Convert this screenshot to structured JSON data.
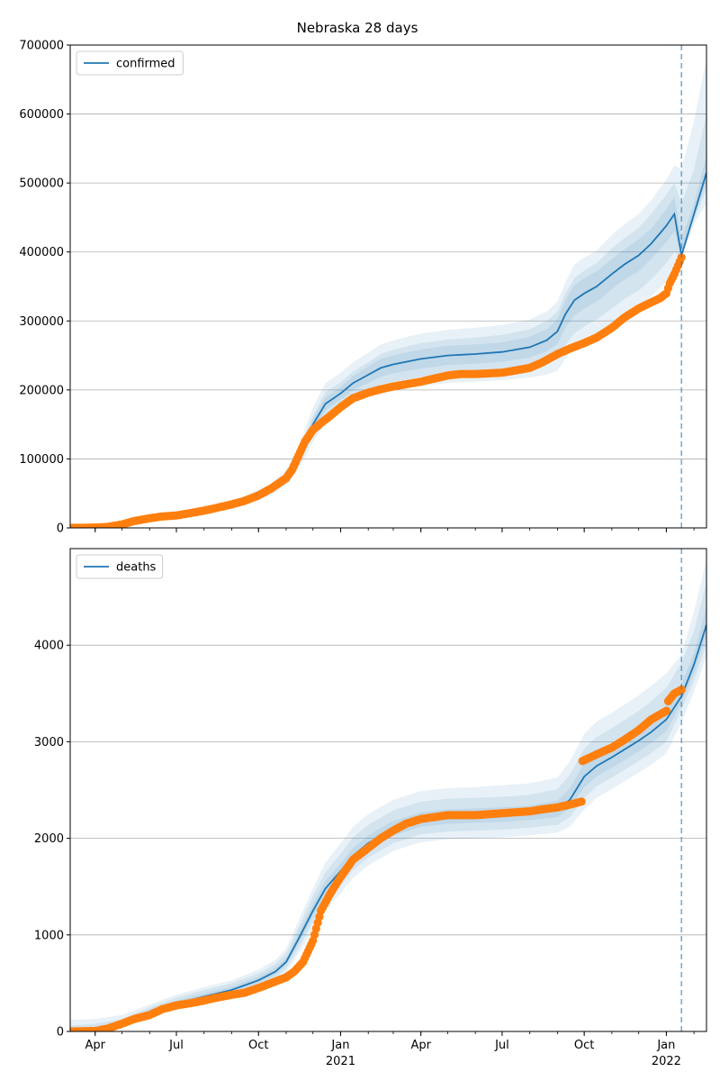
{
  "chart_data": {
    "type": "line",
    "title": "Nebraska 28 days",
    "x_ticks": [
      {
        "date": "2020-04-01",
        "label": "Apr",
        "year": ""
      },
      {
        "date": "2020-07-01",
        "label": "Jul",
        "year": ""
      },
      {
        "date": "2020-10-01",
        "label": "Oct",
        "year": ""
      },
      {
        "date": "2021-01-01",
        "label": "Jan",
        "year": "2021"
      },
      {
        "date": "2021-04-01",
        "label": "Apr",
        "year": ""
      },
      {
        "date": "2021-07-01",
        "label": "Jul",
        "year": ""
      },
      {
        "date": "2021-10-01",
        "label": "Oct",
        "year": ""
      },
      {
        "date": "2022-01-01",
        "label": "Jan",
        "year": "2022"
      }
    ],
    "xlim": [
      "2020-03-04",
      "2022-02-15"
    ],
    "forecast_start": "2022-01-18",
    "grid": true,
    "legend_placement": "top-left",
    "band_color": "#1f77b4",
    "model_color": "#1f77b4",
    "observed_color": "#ff7f0e",
    "panels": [
      {
        "series_name": "confirmed",
        "ylim": [
          0,
          700000
        ],
        "yticks": [
          0,
          100000,
          200000,
          300000,
          400000,
          500000,
          600000,
          700000
        ],
        "model": {
          "x": [
            "2020-03-04",
            "2020-04-15",
            "2020-05-15",
            "2020-06-15",
            "2020-07-15",
            "2020-08-15",
            "2020-09-15",
            "2020-10-15",
            "2020-11-01",
            "2020-11-15",
            "2020-12-01",
            "2020-12-15",
            "2021-01-01",
            "2021-01-15",
            "2021-02-01",
            "2021-02-15",
            "2021-03-01",
            "2021-04-01",
            "2021-05-01",
            "2021-06-01",
            "2021-07-01",
            "2021-08-01",
            "2021-08-20",
            "2021-09-01",
            "2021-09-10",
            "2021-09-20",
            "2021-10-01",
            "2021-10-15",
            "2021-11-01",
            "2021-11-15",
            "2021-12-01",
            "2021-12-15",
            "2022-01-01",
            "2022-01-10",
            "2022-01-18",
            "2022-02-01",
            "2022-02-15"
          ],
          "y": [
            0,
            1500,
            10000,
            17000,
            23000,
            30000,
            40000,
            55000,
            72000,
            100000,
            150000,
            180000,
            195000,
            210000,
            222000,
            232000,
            237000,
            245000,
            250000,
            252000,
            255000,
            262000,
            272000,
            285000,
            310000,
            330000,
            340000,
            350000,
            368000,
            382000,
            395000,
            412000,
            438000,
            455000,
            395000,
            455000,
            515000
          ],
          "bands": [
            {
              "lower": [
                0,
                1000,
                8000,
                14000,
                19000,
                25000,
                34000,
                47000,
                62000,
                85000,
                125000,
                152000,
                168000,
                180000,
                190000,
                196000,
                200000,
                206000,
                210000,
                212000,
                214000,
                218000,
                222000,
                228000,
                245000,
                262000,
                272000,
                282000,
                296000,
                310000,
                322000,
                336000,
                356000,
                370000,
                390000,
                440000,
                470000
              ],
              "upper": [
                0,
                2000,
                12000,
                20000,
                27000,
                35000,
                46000,
                64000,
                84000,
                118000,
                175000,
                210000,
                225000,
                240000,
                254000,
                266000,
                272000,
                282000,
                287000,
                290000,
                294000,
                302000,
                314000,
                328000,
                356000,
                382000,
                392000,
                402000,
                425000,
                440000,
                455000,
                475000,
                505000,
                525000,
                520000,
                590000,
                680000
              ]
            },
            {
              "lower": [
                0,
                1100,
                8500,
                15000,
                20000,
                26500,
                36000,
                50000,
                66000,
                90000,
                135000,
                162000,
                178000,
                190000,
                200000,
                208000,
                212000,
                219000,
                223000,
                226000,
                229000,
                233000,
                238000,
                245000,
                265000,
                282000,
                292000,
                302000,
                318000,
                332000,
                344000,
                360000,
                384000,
                400000,
                392000,
                447000,
                490000
              ],
              "upper": [
                0,
                1900,
                11500,
                19000,
                26000,
                33500,
                44000,
                61000,
                79000,
                111000,
                163000,
                197000,
                211000,
                227000,
                240000,
                252000,
                258000,
                268000,
                273000,
                276000,
                280000,
                288000,
                300000,
                313000,
                340000,
                362000,
                373000,
                384000,
                405000,
                420000,
                435000,
                455000,
                483000,
                500000,
                470000,
                520000,
                600000
              ]
            },
            {
              "lower": [
                0,
                1300,
                9200,
                16000,
                21500,
                28000,
                38000,
                52500,
                69000,
                95000,
                142000,
                171000,
                186000,
                200000,
                210000,
                219000,
                224000,
                231000,
                236000,
                238000,
                241000,
                247000,
                256000,
                267000,
                290000,
                308000,
                318000,
                328000,
                346000,
                360000,
                372000,
                390000,
                414000,
                430000,
                393000,
                451000,
                503000
              ],
              "upper": [
                0,
                1700,
                10800,
                18000,
                24500,
                32000,
                42000,
                57500,
                75000,
                105000,
                158000,
                189000,
                204000,
                220000,
                234000,
                245000,
                250000,
                259000,
                264000,
                266000,
                269000,
                277000,
                288000,
                303000,
                330000,
                352000,
                362000,
                372000,
                390000,
                404000,
                418000,
                434000,
                462000,
                480000,
                420000,
                470000,
                540000
              ]
            }
          ]
        },
        "observed": {
          "x": [
            "2020-03-04",
            "2020-04-01",
            "2020-04-15",
            "2020-05-01",
            "2020-05-15",
            "2020-06-01",
            "2020-06-15",
            "2020-07-01",
            "2020-07-15",
            "2020-08-01",
            "2020-08-15",
            "2020-09-01",
            "2020-09-15",
            "2020-10-01",
            "2020-10-15",
            "2020-11-01",
            "2020-11-08",
            "2020-11-15",
            "2020-11-22",
            "2020-12-01",
            "2020-12-10",
            "2020-12-20",
            "2021-01-01",
            "2021-01-15",
            "2021-02-01",
            "2021-02-15",
            "2021-03-01",
            "2021-04-01",
            "2021-05-01",
            "2021-05-15",
            "2021-06-01",
            "2021-07-01",
            "2021-07-15",
            "2021-08-01",
            "2021-08-15",
            "2021-09-01",
            "2021-09-15",
            "2021-10-01",
            "2021-10-15",
            "2021-11-01",
            "2021-11-15",
            "2021-12-01",
            "2021-12-15",
            "2021-12-25",
            "2022-01-01",
            "2022-01-05",
            "2022-01-10",
            "2022-01-14",
            "2022-01-18"
          ],
          "y": [
            0,
            500,
            1500,
            5000,
            10000,
            14000,
            16500,
            18000,
            21000,
            25000,
            29000,
            34000,
            39000,
            47000,
            57000,
            72000,
            85000,
            105000,
            125000,
            142000,
            152000,
            162000,
            175000,
            188000,
            196000,
            201000,
            205000,
            212000,
            221000,
            223000,
            223000,
            225000,
            228000,
            232000,
            240000,
            252000,
            260000,
            268000,
            276000,
            290000,
            305000,
            318000,
            327000,
            333000,
            340000,
            355000,
            368000,
            380000,
            392000
          ]
        }
      },
      {
        "series_name": "deaths",
        "ylim": [
          0,
          5000
        ],
        "yticks": [
          0,
          1000,
          2000,
          3000,
          4000
        ],
        "model": {
          "x": [
            "2020-03-04",
            "2020-04-01",
            "2020-05-01",
            "2020-06-01",
            "2020-07-01",
            "2020-08-01",
            "2020-09-01",
            "2020-10-01",
            "2020-10-20",
            "2020-11-01",
            "2020-11-15",
            "2020-12-01",
            "2020-12-15",
            "2021-01-01",
            "2021-01-15",
            "2021-02-01",
            "2021-03-01",
            "2021-04-01",
            "2021-05-01",
            "2021-06-01",
            "2021-07-01",
            "2021-08-01",
            "2021-09-01",
            "2021-09-15",
            "2021-10-01",
            "2021-10-15",
            "2021-11-01",
            "2021-12-01",
            "2021-12-15",
            "2022-01-01",
            "2022-01-18",
            "2022-02-01",
            "2022-02-15"
          ],
          "y": [
            0,
            10,
            80,
            200,
            290,
            360,
            430,
            530,
            620,
            720,
            960,
            1250,
            1480,
            1660,
            1820,
            1950,
            2100,
            2190,
            2220,
            2230,
            2240,
            2260,
            2300,
            2400,
            2640,
            2750,
            2840,
            3010,
            3100,
            3230,
            3470,
            3800,
            4210
          ],
          "bands": [
            {
              "lower": [
                0,
                0,
                40,
                150,
                230,
                290,
                350,
                440,
                520,
                610,
                810,
                1060,
                1260,
                1430,
                1590,
                1720,
                1870,
                1960,
                1990,
                2000,
                2010,
                2030,
                2060,
                2120,
                2300,
                2420,
                2510,
                2680,
                2760,
                2880,
                3200,
                3520,
                3880
              ],
              "upper": [
                120,
                130,
                170,
                280,
                380,
                460,
                530,
                640,
                740,
                860,
                1150,
                1480,
                1750,
                1950,
                2120,
                2250,
                2400,
                2490,
                2520,
                2530,
                2550,
                2570,
                2630,
                2800,
                3080,
                3210,
                3300,
                3480,
                3580,
                3710,
                3900,
                4350,
                4880
              ]
            },
            {
              "lower": [
                0,
                0,
                55,
                165,
                250,
                310,
                380,
                470,
                550,
                650,
                860,
                1130,
                1340,
                1510,
                1670,
                1800,
                1950,
                2040,
                2070,
                2080,
                2090,
                2110,
                2140,
                2220,
                2420,
                2540,
                2630,
                2800,
                2880,
                3000,
                3330,
                3630,
                4000
              ],
              "upper": [
                60,
                80,
                130,
                250,
                350,
                430,
                500,
                600,
                700,
                810,
                1080,
                1400,
                1650,
                1840,
                2010,
                2140,
                2290,
                2380,
                2410,
                2420,
                2430,
                2450,
                2510,
                2660,
                2930,
                3050,
                3140,
                3320,
                3420,
                3560,
                3820,
                4150,
                4650
              ]
            },
            {
              "lower": [
                0,
                3,
                65,
                180,
                265,
                330,
                405,
                500,
                585,
                690,
                910,
                1190,
                1410,
                1590,
                1750,
                1880,
                2030,
                2120,
                2150,
                2160,
                2170,
                2190,
                2220,
                2310,
                2530,
                2640,
                2730,
                2900,
                2990,
                3110,
                3400,
                3710,
                4100
              ],
              "upper": [
                20,
                40,
                100,
                225,
                320,
                395,
                465,
                565,
                660,
                760,
                1020,
                1320,
                1560,
                1740,
                1900,
                2030,
                2180,
                2270,
                2300,
                2310,
                2320,
                2340,
                2390,
                2520,
                2780,
                2880,
                2970,
                3140,
                3240,
                3380,
                3600,
                3920,
                4400
              ]
            }
          ]
        },
        "observed": {
          "x": [
            "2020-03-04",
            "2020-04-01",
            "2020-04-15",
            "2020-05-01",
            "2020-05-15",
            "2020-06-01",
            "2020-06-15",
            "2020-07-01",
            "2020-07-15",
            "2020-08-01",
            "2020-08-15",
            "2020-09-01",
            "2020-09-15",
            "2020-10-01",
            "2020-10-15",
            "2020-11-01",
            "2020-11-10",
            "2020-11-20",
            "2020-12-01",
            "2020-12-10",
            "2020-12-20",
            "2021-01-01",
            "2021-01-15",
            "2021-02-01",
            "2021-02-15",
            "2021-03-01",
            "2021-03-15",
            "2021-04-01",
            "2021-05-01",
            "2021-06-01",
            "2021-07-01",
            "2021-08-01",
            "2021-08-15",
            "2021-09-01",
            "2021-09-15",
            "2021-09-28",
            "2021-09-29",
            "2021-10-15",
            "2021-11-01",
            "2021-11-15",
            "2021-12-01",
            "2021-12-15",
            "2022-01-01",
            "2022-01-03",
            "2022-01-10",
            "2022-01-18"
          ],
          "y": [
            0,
            5,
            30,
            80,
            130,
            170,
            230,
            270,
            290,
            320,
            350,
            380,
            400,
            450,
            500,
            560,
            620,
            720,
            940,
            1250,
            1420,
            1600,
            1780,
            1900,
            2000,
            2080,
            2150,
            2200,
            2240,
            2240,
            2260,
            2280,
            2300,
            2320,
            2350,
            2380,
            2800,
            2870,
            2940,
            3020,
            3120,
            3230,
            3320,
            3420,
            3500,
            3540
          ]
        }
      }
    ]
  }
}
